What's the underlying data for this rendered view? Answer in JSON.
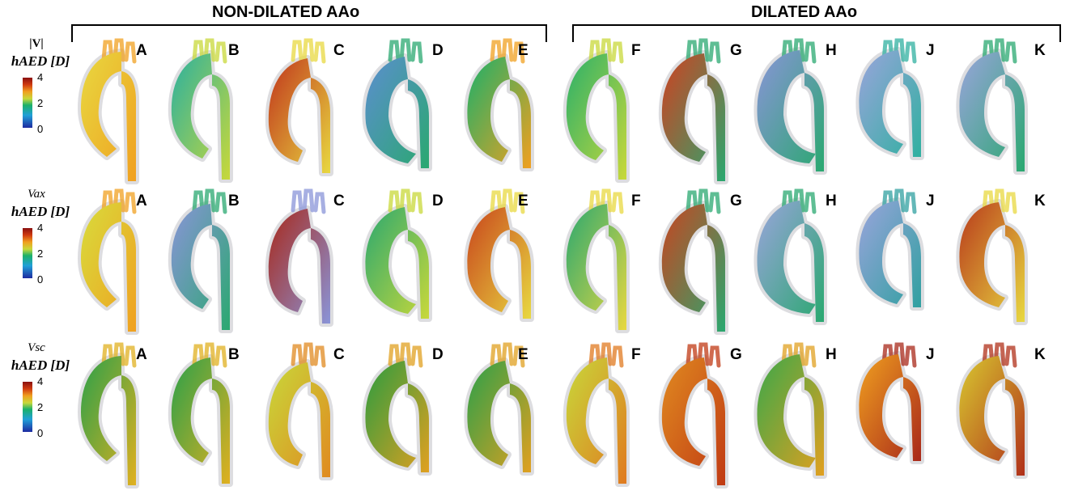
{
  "groups": {
    "non_dilated": "NON-DILATED AAo",
    "dilated": "DILATED AAo"
  },
  "panel_letters": [
    "A",
    "B",
    "C",
    "D",
    "E",
    "F",
    "G",
    "H",
    "J",
    "K"
  ],
  "rows": [
    {
      "variable_symbol": "|V|",
      "variable_italic": "",
      "title": "hAED [D]",
      "ticks": [
        "4",
        "2",
        "0"
      ],
      "colormap": "turbo-like: blue 0 → green 2 → red 4",
      "panel_palettes": [
        [
          "#e8d840",
          "#f0a020"
        ],
        [
          "#2ab0a0",
          "#c8d83a"
        ],
        [
          "#c0341c",
          "#e8d840"
        ],
        [
          "#5c8ed0",
          "#2aa870"
        ],
        [
          "#1ab06a",
          "#f0a020"
        ],
        [
          "#2ab06a",
          "#c8d83a"
        ],
        [
          "#d04020",
          "#2aa870"
        ],
        [
          "#8a94d8",
          "#2aa870"
        ],
        [
          "#9aa4dc",
          "#30b0a0"
        ],
        [
          "#9aa4dc",
          "#2aa870"
        ]
      ]
    },
    {
      "variable_symbol": "",
      "variable_italic": "Vax",
      "title": "hAED [D]",
      "ticks": [
        "4",
        "2",
        "0"
      ],
      "colormap": "turbo-like: blue 0 → green 2 → red 4",
      "panel_palettes": [
        [
          "#d8dc3c",
          "#f0a020"
        ],
        [
          "#8a94d8",
          "#2aa870"
        ],
        [
          "#a8281a",
          "#8a94d8"
        ],
        [
          "#2aa870",
          "#c8d83a"
        ],
        [
          "#c8441c",
          "#e8d840"
        ],
        [
          "#2aa870",
          "#e8d840"
        ],
        [
          "#c84420",
          "#2aa870"
        ],
        [
          "#9aa4dc",
          "#2aa870"
        ],
        [
          "#9aa4dc",
          "#30a0a0"
        ],
        [
          "#b83a1c",
          "#e8d840"
        ]
      ]
    },
    {
      "variable_symbol": "",
      "variable_italic": "Vsc",
      "title": "hAED [D]",
      "ticks": [
        "4",
        "2",
        "0"
      ],
      "colormap": "turbo-like: blue 0 → green 2 → red 4",
      "panel_palettes": [
        [
          "#2aa04a",
          "#e0b020"
        ],
        [
          "#2aa04a",
          "#e0b020"
        ],
        [
          "#c8d83a",
          "#e08a20"
        ],
        [
          "#2a9c40",
          "#e0a020"
        ],
        [
          "#2aa04a",
          "#e0a020"
        ],
        [
          "#c8d83a",
          "#e07a20"
        ],
        [
          "#e08a20",
          "#c03a14"
        ],
        [
          "#3aa84a",
          "#e0a020"
        ],
        [
          "#f0a020",
          "#a8281a"
        ],
        [
          "#d8c830",
          "#b0301a"
        ]
      ]
    }
  ]
}
